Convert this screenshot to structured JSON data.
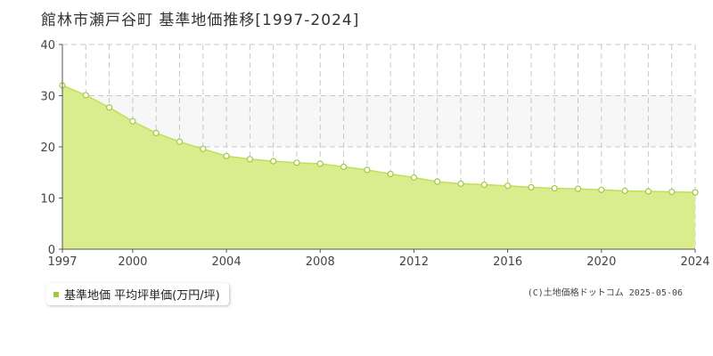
{
  "title": "館林市瀬戸谷町 基準地価推移[1997-2024]",
  "legend": {
    "label": "基準地価 平均坪単価(万円/坪)"
  },
  "copyright": "(C)土地価格ドットコム 2025-05-06",
  "colors": {
    "fill": "#d9ec8e",
    "line": "#c2df5a",
    "band": "#f7f7f7",
    "grid": "#c8c8c8",
    "marker": "#9ccc3c"
  },
  "chart_data": {
    "type": "area",
    "x": [
      1997,
      1998,
      1999,
      2000,
      2001,
      2002,
      2003,
      2004,
      2005,
      2006,
      2007,
      2008,
      2009,
      2010,
      2011,
      2012,
      2013,
      2014,
      2015,
      2016,
      2017,
      2018,
      2019,
      2020,
      2021,
      2022,
      2023,
      2024
    ],
    "series": [
      {
        "values": [
          32.0,
          30.1,
          27.7,
          25.0,
          22.7,
          21.0,
          19.6,
          18.2,
          17.6,
          17.2,
          16.9,
          16.7,
          16.1,
          15.5,
          14.7,
          14.0,
          13.2,
          12.8,
          12.6,
          12.4,
          12.1,
          11.9,
          11.8,
          11.6,
          11.4,
          11.3,
          11.2,
          11.1
        ]
      }
    ],
    "ylim": [
      0,
      40
    ],
    "yticks": [
      0,
      10,
      20,
      30,
      40
    ],
    "xlim": [
      1997,
      2024
    ],
    "xticks": [
      1997,
      2000,
      2004,
      2008,
      2012,
      2016,
      2020,
      2024
    ],
    "xlabel": "",
    "ylabel": "",
    "grid": true,
    "legend_position": "bottom-left"
  }
}
